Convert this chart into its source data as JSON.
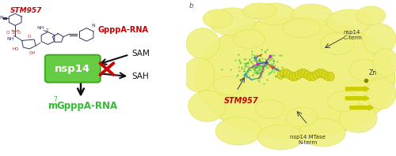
{
  "bg_color": "#ffffff",
  "left_panel": {
    "stm957_label": "STM957",
    "stm957_color": "#cc0000",
    "gppp_label": "GpppA-RNA",
    "gppp_color": "#cc0000",
    "nsp14_label": "nsp14",
    "nsp14_box_color": "#66cc44",
    "nsp14_box_edge": "#44aa22",
    "sam_label": "SAM",
    "sah_label": "SAH",
    "arrow_color": "#111111",
    "cross_color": "#cc0000",
    "product_m": "m",
    "product_sup": "7",
    "product_gppp": "GpppA-RNA",
    "product_green_color": "#33bb33"
  },
  "right_panel": {
    "protein_color": "#f0f080",
    "protein_edge": "#d8d830",
    "protein_shadow": "#e0e050",
    "helix_color": "#d8d820",
    "helix_edge": "#b8b800",
    "beta_color": "#cccc00",
    "inhibitor_green": "#44aa44",
    "inhibitor_mesh": "#228822",
    "stm957_label": "STM957",
    "stm957_color": "#cc0000",
    "nsp14_cterm_label": "nsp14\nC-term",
    "zn_label": "Zn",
    "nsp14_nterm_label": "nsp14 MTase\nN-term",
    "annotation_color": "#333333"
  },
  "panel_b_label": "b",
  "panel_b_color": "#555555"
}
